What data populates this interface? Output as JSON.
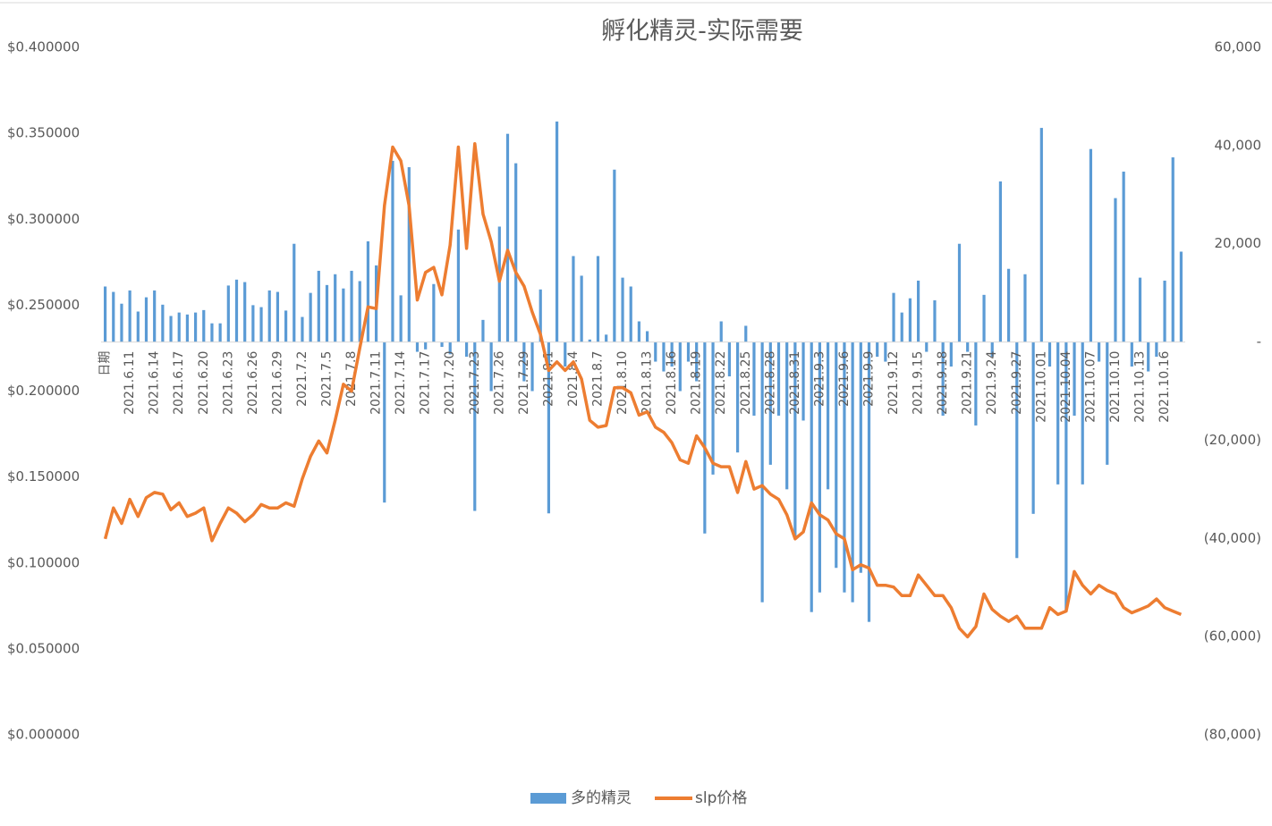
{
  "chart_data": {
    "type": "bar",
    "title": "孵化精灵-实际需要",
    "categories": [
      "日期",
      null,
      null,
      "2021.6.11",
      null,
      null,
      "2021.6.14",
      null,
      null,
      "2021.6.17",
      null,
      null,
      "2021.6.20",
      null,
      null,
      "2021.6.23",
      null,
      null,
      "2021.6.26",
      null,
      null,
      "2021.6.29",
      null,
      null,
      "2021.7.2",
      null,
      null,
      "2021.7.5",
      null,
      null,
      "2021.7.8",
      null,
      null,
      "2021.7.11",
      null,
      null,
      "2021.7.14",
      null,
      null,
      "2021.7.17",
      null,
      null,
      "2021.7.20",
      null,
      null,
      "2021.7.23",
      null,
      null,
      "2021.7.26",
      null,
      null,
      "2021.7.29",
      null,
      null,
      "2021.8.1",
      null,
      null,
      "2021.8.4",
      null,
      null,
      "2021.8.7",
      null,
      null,
      "2021.8.10",
      null,
      null,
      "2021.8.13",
      null,
      null,
      "2021.8.16",
      null,
      null,
      "2021.8.19",
      null,
      null,
      "2021.8.22",
      null,
      null,
      "2021.8.25",
      null,
      null,
      "2021.8.28",
      null,
      null,
      "2021.8.31",
      null,
      null,
      "2021.9.3",
      null,
      null,
      "2021.9.6",
      null,
      null,
      "2021.9.9",
      null,
      null,
      "2021.9.12",
      null,
      null,
      "2021.9.15",
      null,
      null,
      "2021.9.18",
      null,
      null,
      "2021.9.21",
      null,
      null,
      "2021.9.24",
      null,
      null,
      "2021.9.27",
      null,
      null,
      "2021.10.01",
      null,
      null,
      "2021.10.04",
      null,
      null,
      "2021.10.07",
      null,
      null,
      "2021.10.10",
      null,
      null,
      "2021.10.13",
      null,
      null,
      "2021.10.16",
      null,
      null
    ],
    "series": [
      {
        "name": "多的精灵",
        "type": "bar",
        "axis": "y2",
        "color": "#5b9bd5",
        "values": [
          11300,
          10200,
          7800,
          10500,
          6200,
          9100,
          10500,
          7600,
          5300,
          6000,
          5600,
          6000,
          6500,
          3800,
          3800,
          11500,
          12700,
          12200,
          7500,
          7100,
          10500,
          10200,
          6400,
          20000,
          5100,
          10000,
          14500,
          11600,
          13800,
          10900,
          14500,
          12400,
          20500,
          15600,
          -32700,
          36900,
          9500,
          35600,
          -2000,
          -1500,
          11800,
          -1000,
          -2500,
          22900,
          -3000,
          -34400,
          4500,
          -10000,
          23500,
          42400,
          36400,
          -8000,
          -10000,
          10700,
          -34900,
          44900,
          -5000,
          17500,
          13500,
          500,
          17500,
          1500,
          35100,
          13100,
          11300,
          4200,
          2200,
          -4000,
          -6000,
          -5000,
          -10000,
          -4000,
          -8000,
          -39000,
          -27000,
          4200,
          -7000,
          -22500,
          3300,
          -15000,
          -53000,
          -25000,
          -15000,
          -30000,
          -40000,
          -16000,
          -55000,
          -51000,
          -30000,
          -46000,
          -51000,
          -53000,
          -47000,
          -57000,
          -3000,
          -4000,
          10000,
          6000,
          8900,
          12500,
          -2000,
          8500,
          -15000,
          -5000,
          20000,
          -2000,
          -17000,
          9600,
          -3000,
          32700,
          14900,
          -44000,
          13800,
          -35000,
          43600,
          -5000,
          -29000,
          -55000,
          -15000,
          -29000,
          39300,
          -4000,
          -25000,
          29300,
          34700,
          -5000,
          13100,
          -6000,
          -3000,
          12500,
          37600,
          18400
        ]
      },
      {
        "name": "slp价格",
        "type": "line",
        "axis": "y",
        "color": "#ed7d31",
        "values": [
          0.114,
          0.132,
          0.123,
          0.137,
          0.127,
          0.138,
          0.141,
          0.14,
          0.131,
          0.135,
          0.127,
          0.129,
          0.132,
          0.113,
          0.123,
          0.132,
          0.129,
          0.124,
          0.128,
          0.134,
          0.132,
          0.132,
          0.135,
          0.133,
          0.149,
          0.162,
          0.171,
          0.164,
          0.183,
          0.204,
          0.2,
          0.225,
          0.249,
          0.248,
          0.308,
          0.342,
          0.334,
          0.308,
          0.253,
          0.269,
          0.272,
          0.256,
          0.285,
          0.342,
          0.283,
          0.344,
          0.303,
          0.287,
          0.264,
          0.282,
          0.269,
          0.261,
          0.246,
          0.233,
          0.212,
          0.217,
          0.212,
          0.217,
          0.207,
          0.183,
          0.179,
          0.18,
          0.202,
          0.202,
          0.199,
          0.186,
          0.188,
          0.179,
          0.176,
          0.17,
          0.16,
          0.158,
          0.174,
          0.167,
          0.158,
          0.156,
          0.156,
          0.141,
          0.159,
          0.143,
          0.145,
          0.14,
          0.137,
          0.128,
          0.114,
          0.118,
          0.135,
          0.128,
          0.125,
          0.117,
          0.114,
          0.096,
          0.099,
          0.097,
          0.087,
          0.087,
          0.086,
          0.081,
          0.081,
          0.093,
          0.087,
          0.081,
          0.081,
          0.074,
          0.062,
          0.057,
          0.063,
          0.082,
          0.073,
          0.069,
          0.066,
          0.069,
          0.062,
          0.062,
          0.062,
          0.074,
          0.07,
          0.072,
          0.095,
          0.087,
          0.082,
          0.087,
          0.084,
          0.082,
          0.074,
          0.071,
          0.073,
          0.075,
          0.079,
          0.074,
          0.072,
          0.07
        ]
      }
    ],
    "ylim": [
      0,
      0.4
    ],
    "yticks": [
      {
        "value": 0,
        "label": "$0.000000"
      },
      {
        "value": 0.05,
        "label": "$0.050000"
      },
      {
        "value": 0.1,
        "label": "$0.100000"
      },
      {
        "value": 0.15,
        "label": "$0.150000"
      },
      {
        "value": 0.2,
        "label": "$0.200000"
      },
      {
        "value": 0.25,
        "label": "$0.250000"
      },
      {
        "value": 0.3,
        "label": "$0.300000"
      },
      {
        "value": 0.35,
        "label": "$0.350000"
      },
      {
        "value": 0.4,
        "label": "$0.400000"
      }
    ],
    "y2lim": [
      -80000,
      60000
    ],
    "y2ticks": [
      {
        "value": -80000,
        "label": "(80,000)"
      },
      {
        "value": -60000,
        "label": "(60,000)"
      },
      {
        "value": -40000,
        "label": "(40,000)"
      },
      {
        "value": -20000,
        "label": "(20,000)"
      },
      {
        "value": 0,
        "label": "-"
      },
      {
        "value": 20000,
        "label": "20,000"
      },
      {
        "value": 40000,
        "label": "40,000"
      },
      {
        "value": 60000,
        "label": "60,000"
      }
    ],
    "grid": false,
    "legend": "bottom"
  }
}
